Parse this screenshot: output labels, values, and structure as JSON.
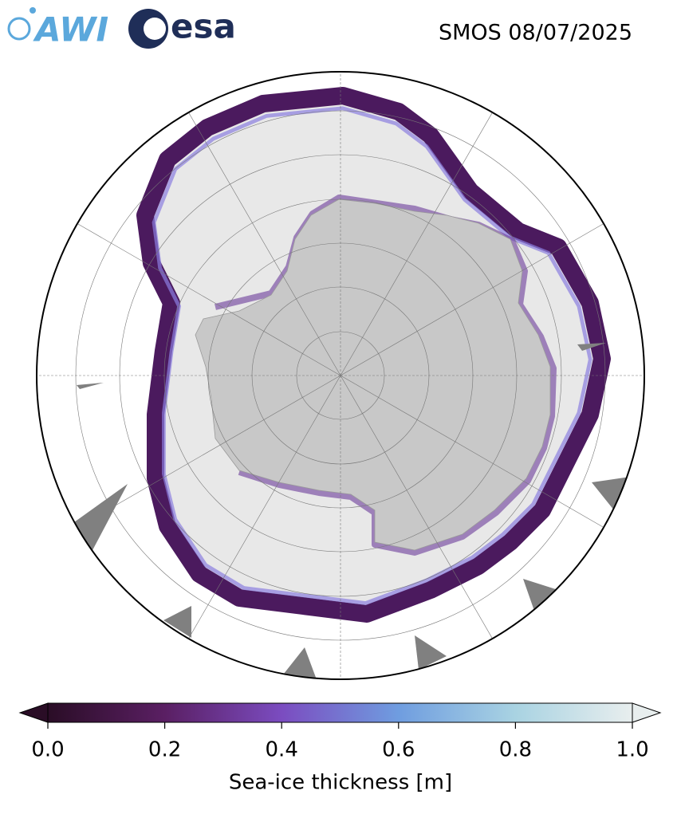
{
  "header": {
    "logos": [
      "AWI",
      "esa"
    ],
    "title": "SMOS 08/07/2025"
  },
  "colorbar": {
    "label": "Sea-ice thickness [m]",
    "lim": [
      0,
      1
    ],
    "ticks": [
      {
        "value": 0,
        "label": "0.0"
      },
      {
        "value": 0.2,
        "label": "0.2"
      },
      {
        "value": 0.4,
        "label": "0.4"
      },
      {
        "value": 0.6,
        "label": "0.6"
      },
      {
        "value": 0.8,
        "label": "0.8"
      },
      {
        "value": 1,
        "label": "1.0"
      }
    ],
    "colors": [
      "#2a0d26",
      "#5a1f63",
      "#7b4cc0",
      "#6f9de0",
      "#a9d3e2",
      "#e8eeee"
    ]
  }
}
